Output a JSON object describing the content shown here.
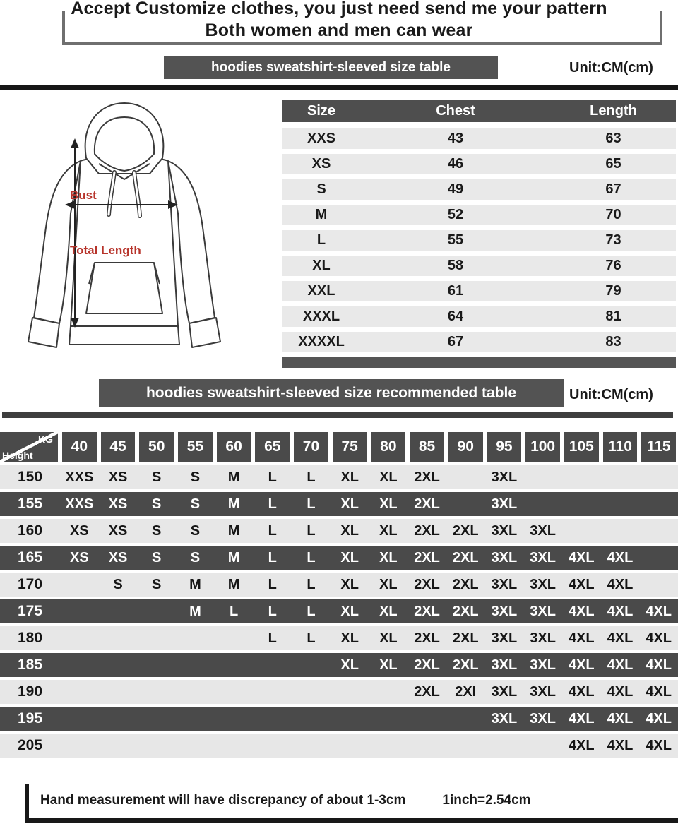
{
  "header": {
    "title_line1": "Accept Customize clothes, you just need send me your pattern",
    "title_line2": "Both women and men can wear"
  },
  "size_section": {
    "banner": "hoodies sweatshirt-sleeved size  table",
    "unit": "Unit:CM(cm)",
    "diagram": {
      "bust_label": "Bust",
      "total_length_label": "Total Length"
    },
    "columns": [
      "Size",
      "Chest",
      "Length"
    ],
    "rows": [
      {
        "size": "XXS",
        "chest": "43",
        "length": "63"
      },
      {
        "size": "XS",
        "chest": "46",
        "length": "65"
      },
      {
        "size": "S",
        "chest": "49",
        "length": "67"
      },
      {
        "size": "M",
        "chest": "52",
        "length": "70"
      },
      {
        "size": "L",
        "chest": "55",
        "length": "73"
      },
      {
        "size": "XL",
        "chest": "58",
        "length": "76"
      },
      {
        "size": "XXL",
        "chest": "61",
        "length": "79"
      },
      {
        "size": "XXXL",
        "chest": "64",
        "length": "81"
      },
      {
        "size": "XXXXL",
        "chest": "67",
        "length": "83"
      }
    ]
  },
  "recommend_section": {
    "banner": "hoodies sweatshirt-sleeved size recommended table",
    "unit": "Unit:CM(cm)",
    "corner_top": "KG",
    "corner_bottom": "Height",
    "weight_columns": [
      "40",
      "45",
      "50",
      "55",
      "60",
      "65",
      "70",
      "75",
      "80",
      "85",
      "90",
      "95",
      "100",
      "105",
      "110",
      "115"
    ],
    "rows": [
      {
        "height": "150",
        "cells": [
          "XXS",
          "XS",
          "S",
          "S",
          "M",
          "L",
          "L",
          "XL",
          "XL",
          "2XL",
          "",
          "3XL",
          "",
          "",
          "",
          ""
        ]
      },
      {
        "height": "155",
        "cells": [
          "XXS",
          "XS",
          "S",
          "S",
          "M",
          "L",
          "L",
          "XL",
          "XL",
          "2XL",
          "",
          "3XL",
          "",
          "",
          "",
          ""
        ]
      },
      {
        "height": "160",
        "cells": [
          "XS",
          "XS",
          "S",
          "S",
          "M",
          "L",
          "L",
          "XL",
          "XL",
          "2XL",
          "2XL",
          "3XL",
          "3XL",
          "",
          "",
          ""
        ]
      },
      {
        "height": "165",
        "cells": [
          "XS",
          "XS",
          "S",
          "S",
          "M",
          "L",
          "L",
          "XL",
          "XL",
          "2XL",
          "2XL",
          "3XL",
          "3XL",
          "4XL",
          "4XL",
          ""
        ]
      },
      {
        "height": "170",
        "cells": [
          "",
          "S",
          "S",
          "M",
          "M",
          "L",
          "L",
          "XL",
          "XL",
          "2XL",
          "2XL",
          "3XL",
          "3XL",
          "4XL",
          "4XL",
          ""
        ]
      },
      {
        "height": "175",
        "cells": [
          "",
          "",
          "",
          "M",
          "L",
          "L",
          "L",
          "XL",
          "XL",
          "2XL",
          "2XL",
          "3XL",
          "3XL",
          "4XL",
          "4XL",
          "4XL"
        ]
      },
      {
        "height": "180",
        "cells": [
          "",
          "",
          "",
          "",
          "",
          "L",
          "L",
          "XL",
          "XL",
          "2XL",
          "2XL",
          "3XL",
          "3XL",
          "4XL",
          "4XL",
          "4XL"
        ]
      },
      {
        "height": "185",
        "cells": [
          "",
          "",
          "",
          "",
          "",
          "",
          "",
          "XL",
          "XL",
          "2XL",
          "2XL",
          "3XL",
          "3XL",
          "4XL",
          "4XL",
          "4XL"
        ]
      },
      {
        "height": "190",
        "cells": [
          "",
          "",
          "",
          "",
          "",
          "",
          "",
          "",
          "",
          "2XL",
          "2XI",
          "3XL",
          "3XL",
          "4XL",
          "4XL",
          "4XL"
        ]
      },
      {
        "height": "195",
        "cells": [
          "",
          "",
          "",
          "",
          "",
          "",
          "",
          "",
          "",
          "",
          "",
          "3XL",
          "3XL",
          "4XL",
          "4XL",
          "4XL"
        ]
      },
      {
        "height": "205",
        "cells": [
          "",
          "",
          "",
          "",
          "",
          "",
          "",
          "",
          "",
          "",
          "",
          "",
          "",
          "4XL",
          "4XL",
          "4XL"
        ]
      }
    ]
  },
  "footer": {
    "note": "Hand measurement will have discrepancy of about  1-3cm",
    "conversion": "1inch=2.54cm"
  },
  "colors": {
    "dark_gray": "#4a4a4a",
    "banner_gray": "#535353",
    "light_row": "#e7e7e7",
    "accent_red": "#b7342b",
    "line_black": "#161616"
  }
}
